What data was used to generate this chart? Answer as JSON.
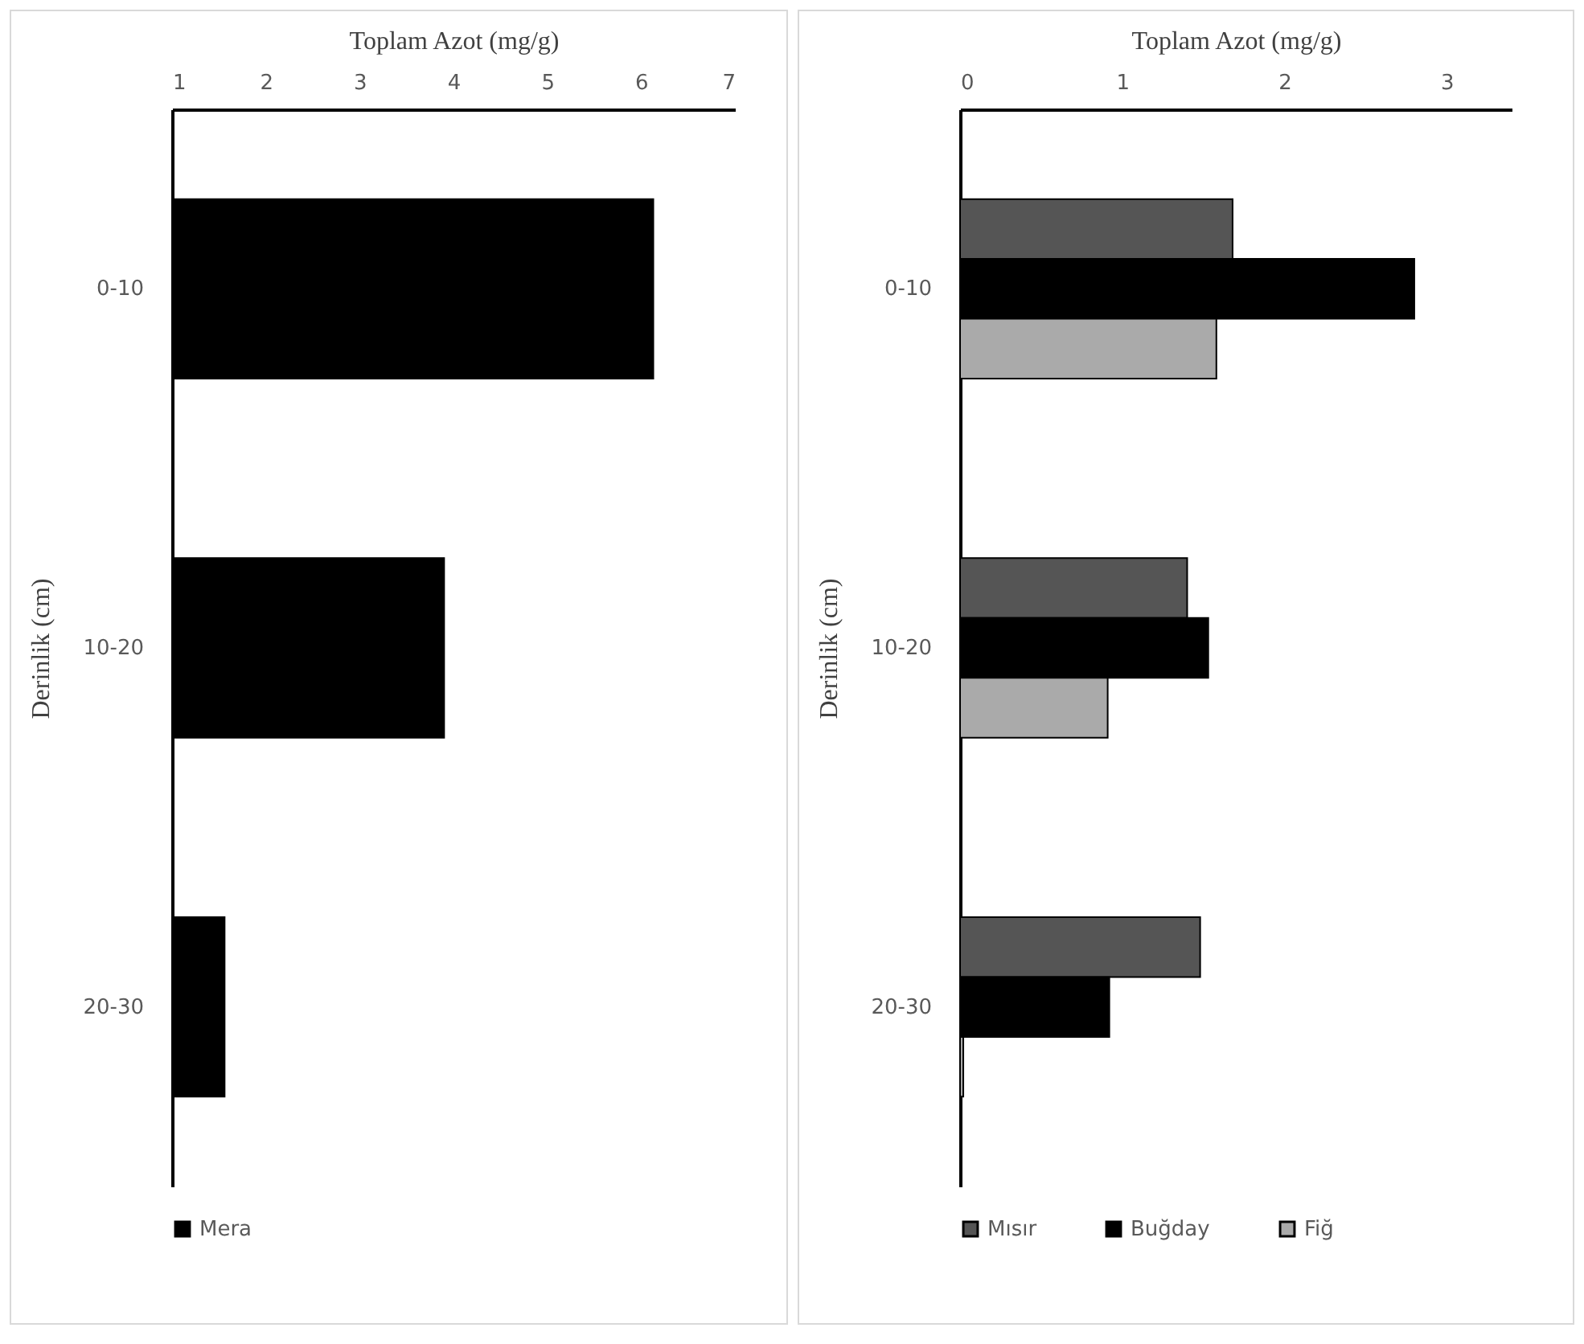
{
  "chart_data": [
    {
      "type": "bar",
      "orientation": "horizontal",
      "xlabel": "Toplam Azot (mg/g)",
      "ylabel": "Derinlik (cm)",
      "categories": [
        "0-10",
        "10-20",
        "20-30"
      ],
      "series": [
        {
          "name": "Mera",
          "color": "#000000",
          "values": [
            6.13,
            3.9,
            1.56
          ]
        }
      ],
      "xlim": [
        1,
        7
      ],
      "xticks": [
        1,
        2,
        3,
        4,
        5,
        6,
        7
      ],
      "grid": false,
      "legend": "bottom"
    },
    {
      "type": "bar",
      "orientation": "horizontal",
      "xlabel": "Toplam Azot (mg/g)",
      "ylabel": "Derinlik (cm)",
      "categories": [
        "0-10",
        "10-20",
        "20-30"
      ],
      "series": [
        {
          "name": "Mısır",
          "color": "#555555",
          "values": [
            1.68,
            1.4,
            1.48
          ]
        },
        {
          "name": "Buğday",
          "color": "#000000",
          "values": [
            2.8,
            1.53,
            0.92
          ]
        },
        {
          "name": "Fiğ",
          "color": "#aaaaaa",
          "values": [
            1.58,
            0.91,
            0.02
          ]
        }
      ],
      "xlim": [
        0,
        3.4
      ],
      "xticks": [
        0,
        1,
        2,
        3
      ],
      "grid": false,
      "legend": "bottom"
    }
  ]
}
